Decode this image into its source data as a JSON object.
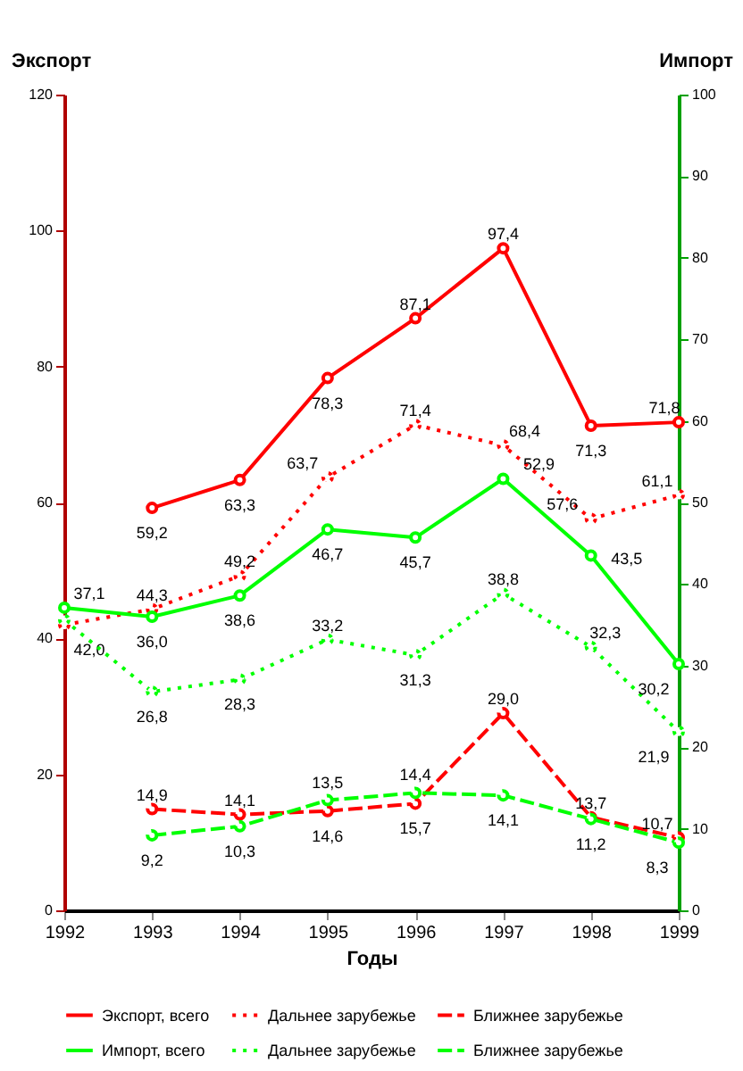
{
  "chart_data": {
    "type": "line",
    "xlabel": "Годы",
    "ylabel": "Экспорт",
    "y2label": "Импорт",
    "x": [
      1992,
      1993,
      1994,
      1995,
      1996,
      1997,
      1998,
      1999
    ],
    "xlim": [
      1992,
      1999
    ],
    "xticks": [
      1992,
      1993,
      1994,
      1995,
      1996,
      1997,
      1998,
      1999
    ],
    "ylim": [
      0,
      120
    ],
    "yticks": [
      0,
      20,
      40,
      60,
      80,
      100,
      120
    ],
    "y2lim": [
      0,
      100
    ],
    "y2ticks": [
      0,
      10,
      20,
      30,
      40,
      50,
      60,
      70,
      80,
      90,
      100
    ],
    "grid": false,
    "legend": "bottom",
    "marker": "circle",
    "series": [
      {
        "name": "Экспорт, всего",
        "color": "#ff0000",
        "line_style": "solid",
        "values": [
          null,
          59.2,
          63.3,
          78.3,
          87.1,
          97.4,
          71.3,
          71.8
        ],
        "value_labels": [
          null,
          "59,2",
          "63,3",
          "78,3",
          "87,1",
          "97,4",
          "71,3",
          "71,8"
        ]
      },
      {
        "name": "Дальнее зарубежье",
        "color": "#ff0000",
        "line_style": "dotted",
        "values": [
          42.0,
          44.3,
          49.2,
          63.7,
          71.4,
          68.4,
          57.6,
          61.1
        ],
        "value_labels": [
          "42,0",
          "44,3",
          "49,2",
          "63,7",
          "71,4",
          "68,4",
          "57,6",
          "61,1"
        ]
      },
      {
        "name": "Ближнее зарубежье",
        "color": "#ff0000",
        "line_style": "dashed",
        "values": [
          null,
          14.9,
          14.1,
          14.6,
          15.7,
          29.0,
          13.7,
          10.7
        ],
        "value_labels": [
          null,
          "14,9",
          "14,1",
          "14,6",
          "15,7",
          "29,0",
          "13,7",
          "10,7"
        ]
      },
      {
        "name": "Импорт, всего",
        "color": "#00ff00",
        "line_style": "solid",
        "axis": "y2",
        "values": [
          37.1,
          36.0,
          38.6,
          46.7,
          45.7,
          52.9,
          43.5,
          30.2
        ],
        "value_labels": [
          "37,1",
          "36,0",
          "38,6",
          "46,7",
          "45,7",
          "52,9",
          "43,5",
          "30,2"
        ]
      },
      {
        "name": "Дальнее зарубежье",
        "color": "#00ff00",
        "line_style": "dotted",
        "axis": "y2",
        "values": [
          35.6,
          26.8,
          28.3,
          33.2,
          31.3,
          38.8,
          32.3,
          21.9
        ],
        "value_labels": [
          null,
          "26,8",
          "28,3",
          "33,2",
          "31,3",
          "38,8",
          "32,3",
          "21,9"
        ]
      },
      {
        "name": "Ближнее зарубежье",
        "color": "#00ff00",
        "line_style": "dashed",
        "axis": "y2",
        "values": [
          null,
          9.2,
          10.3,
          13.5,
          14.4,
          14.1,
          11.2,
          8.3
        ],
        "value_labels": [
          null,
          "9,2",
          "10,3",
          "13,5",
          "14,4",
          "14,1",
          "11,2",
          "8,3"
        ]
      }
    ]
  }
}
